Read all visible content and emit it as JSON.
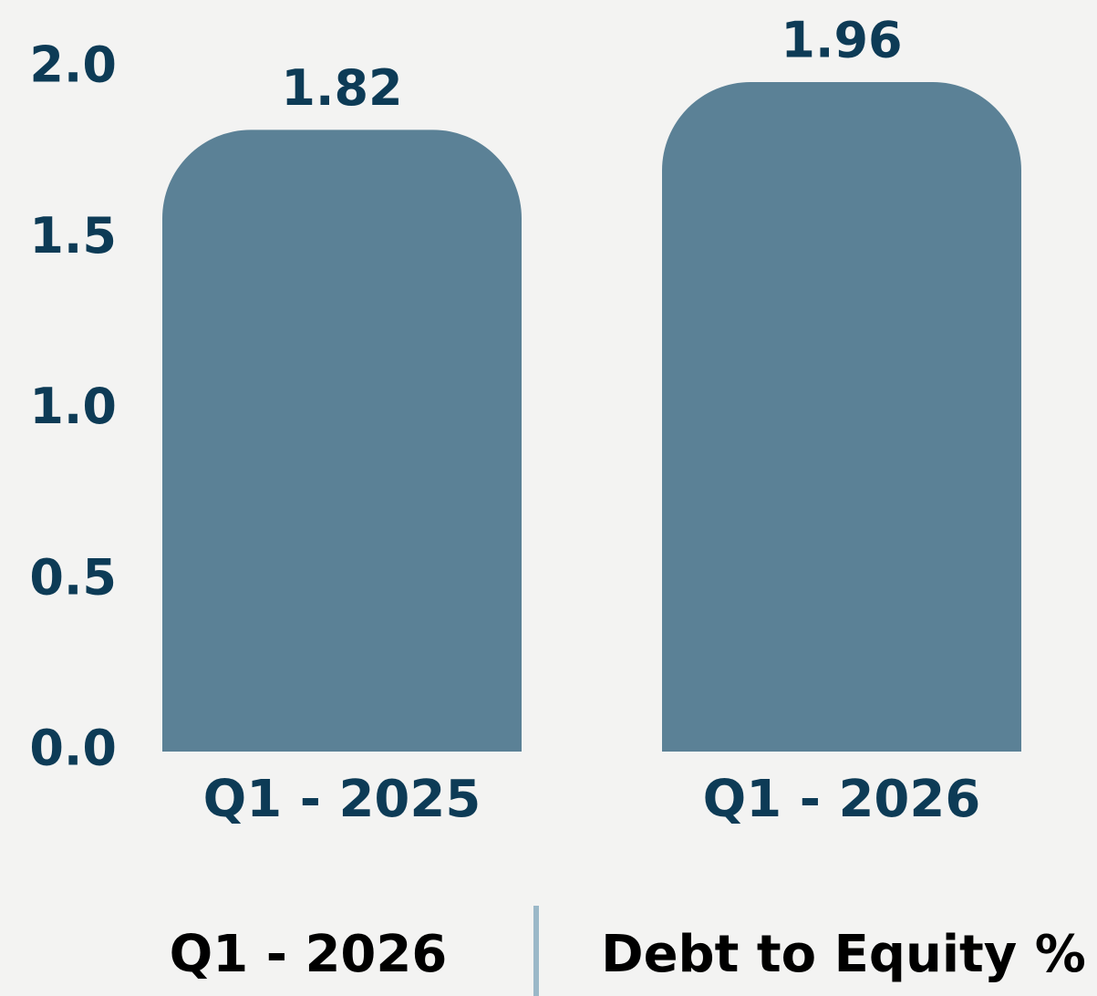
{
  "chart_data": {
    "type": "bar",
    "categories": [
      "Q1 - 2025",
      "Q1 - 2026"
    ],
    "values": [
      1.82,
      1.96
    ],
    "color": "#5b8196",
    "ylim": [
      0,
      2
    ],
    "yticks": [
      {
        "value": 0,
        "label": "0.0"
      },
      0.5,
      {
        "value": 1,
        "label": "1.0"
      },
      1.5,
      {
        "value": 2,
        "label": "2.0"
      }
    ],
    "grid": false,
    "footer_left": "Q1 - 2026",
    "footer_right": "Debt to Equity %"
  }
}
